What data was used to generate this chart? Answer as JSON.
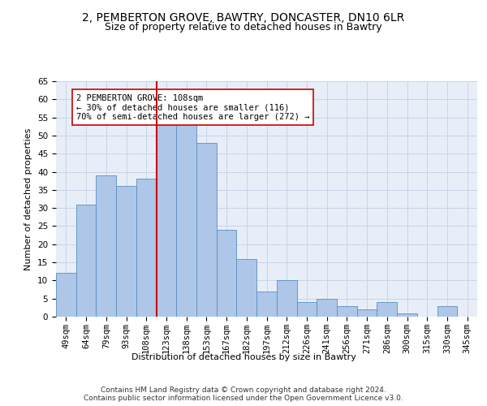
{
  "title_line1": "2, PEMBERTON GROVE, BAWTRY, DONCASTER, DN10 6LR",
  "title_line2": "Size of property relative to detached houses in Bawtry",
  "xlabel": "Distribution of detached houses by size in Bawtry",
  "ylabel": "Number of detached properties",
  "categories": [
    "49sqm",
    "64sqm",
    "79sqm",
    "93sqm",
    "108sqm",
    "123sqm",
    "138sqm",
    "153sqm",
    "167sqm",
    "182sqm",
    "197sqm",
    "212sqm",
    "226sqm",
    "241sqm",
    "256sqm",
    "271sqm",
    "286sqm",
    "300sqm",
    "315sqm",
    "330sqm",
    "345sqm"
  ],
  "values": [
    12,
    31,
    39,
    36,
    38,
    53,
    54,
    48,
    24,
    16,
    7,
    10,
    4,
    5,
    3,
    2,
    4,
    1,
    0,
    3,
    0
  ],
  "bar_color": "#aec6e8",
  "bar_edge_color": "#5a8fc0",
  "vline_x_idx": 4,
  "vline_color": "#cc0000",
  "annotation_text": "2 PEMBERTON GROVE: 108sqm\n← 30% of detached houses are smaller (116)\n70% of semi-detached houses are larger (272) →",
  "annotation_box_color": "#ffffff",
  "annotation_box_edge_color": "#cc0000",
  "ylim": [
    0,
    65
  ],
  "yticks": [
    0,
    5,
    10,
    15,
    20,
    25,
    30,
    35,
    40,
    45,
    50,
    55,
    60,
    65
  ],
  "grid_color": "#c8d4e8",
  "background_color": "#e8eef8",
  "footer": "Contains HM Land Registry data © Crown copyright and database right 2024.\nContains public sector information licensed under the Open Government Licence v3.0.",
  "title_fontsize": 10,
  "subtitle_fontsize": 9,
  "axis_label_fontsize": 8,
  "tick_fontsize": 7.5,
  "footer_fontsize": 6.5
}
